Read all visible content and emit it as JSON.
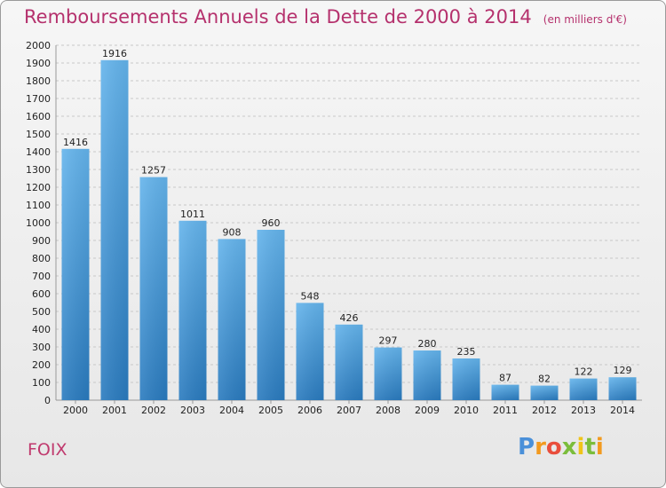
{
  "header": {
    "title": "Remboursements Annuels de la Dette de 2000 à 2014",
    "subtitle": "(en milliers d'€)"
  },
  "footer": {
    "commune": "FOIX",
    "logo_text": "Proxiti"
  },
  "colors": {
    "bar_top": "#64b4ec",
    "bar_bottom": "#2a7bbf",
    "title": "#b5316d"
  },
  "chart_data": {
    "type": "bar",
    "title": "Remboursements Annuels de la Dette de 2000 à 2014",
    "subtitle": "(en milliers d'€)",
    "categories": [
      "2000",
      "2001",
      "2002",
      "2003",
      "2004",
      "2005",
      "2006",
      "2007",
      "2008",
      "2009",
      "2010",
      "2011",
      "2012",
      "2013",
      "2014"
    ],
    "values": [
      1416,
      1916,
      1257,
      1011,
      908,
      960,
      548,
      426,
      297,
      280,
      235,
      87,
      82,
      122,
      129
    ],
    "ylim": [
      0,
      2000
    ],
    "ytick_step": 100,
    "grid": true,
    "xlabel": "",
    "ylabel": ""
  }
}
